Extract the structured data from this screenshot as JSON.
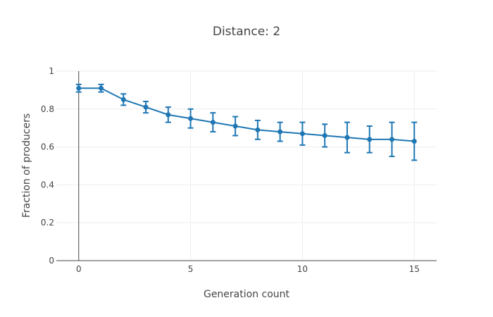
{
  "chart_data": {
    "type": "line",
    "title": "Distance: 2",
    "xlabel": "Generation count",
    "ylabel": "Fraction of producers",
    "xlim": [
      -1,
      16
    ],
    "ylim": [
      0,
      1
    ],
    "xticks": [
      0,
      5,
      10,
      15
    ],
    "yticks": [
      0,
      0.2,
      0.4,
      0.6,
      0.8,
      1
    ],
    "ytick_labels": [
      "0",
      "0.2",
      "0.4",
      "0.6",
      "0.8",
      "1"
    ],
    "grid": true,
    "color": "#1f77b4",
    "x": [
      0,
      1,
      2,
      3,
      4,
      5,
      6,
      7,
      8,
      9,
      10,
      11,
      12,
      13,
      14,
      15
    ],
    "series": [
      {
        "values": [
          0.91,
          0.91,
          0.85,
          0.81,
          0.77,
          0.75,
          0.73,
          0.71,
          0.69,
          0.68,
          0.67,
          0.66,
          0.65,
          0.64,
          0.64,
          0.63
        ],
        "error": [
          0.02,
          0.02,
          0.03,
          0.03,
          0.04,
          0.05,
          0.05,
          0.05,
          0.05,
          0.05,
          0.06,
          0.06,
          0.08,
          0.07,
          0.09,
          0.1
        ]
      }
    ]
  }
}
